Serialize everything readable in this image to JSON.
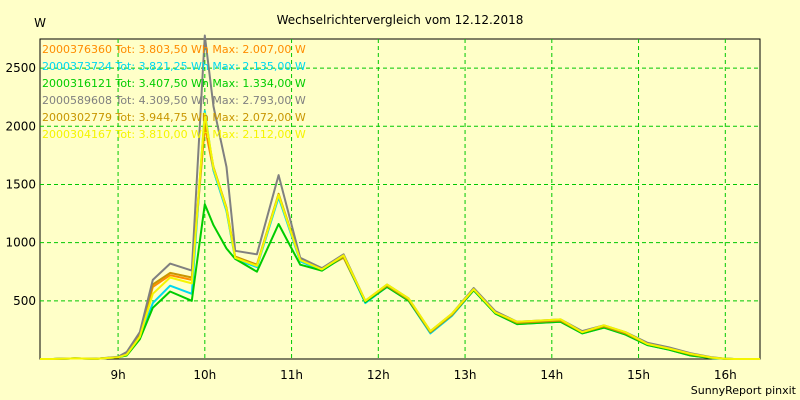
{
  "chart_data": {
    "type": "line",
    "title": "Wechselrichtervergleich vom 12.12.2018",
    "ylabel": "W",
    "footer": "SunnyReport pinxit",
    "xlim": [
      8.1,
      16.4
    ],
    "ylim": [
      0,
      2750
    ],
    "x_ticks": [
      {
        "value": 9,
        "label": "9h"
      },
      {
        "value": 10,
        "label": "10h"
      },
      {
        "value": 11,
        "label": "11h"
      },
      {
        "value": 12,
        "label": "12h"
      },
      {
        "value": 13,
        "label": "13h"
      },
      {
        "value": 14,
        "label": "14h"
      },
      {
        "value": 15,
        "label": "15h"
      },
      {
        "value": 16,
        "label": "16h"
      }
    ],
    "y_ticks": [
      500,
      1000,
      1500,
      2000,
      2500
    ],
    "grid": true,
    "x": [
      8.1,
      8.25,
      8.5,
      8.75,
      9.0,
      9.1,
      9.25,
      9.4,
      9.6,
      9.85,
      10.0,
      10.1,
      10.25,
      10.35,
      10.6,
      10.85,
      11.1,
      11.35,
      11.6,
      11.85,
      12.1,
      12.35,
      12.6,
      12.85,
      13.1,
      13.35,
      13.6,
      13.85,
      14.1,
      14.35,
      14.6,
      14.85,
      15.1,
      15.35,
      15.6,
      15.85,
      16.0,
      16.1,
      16.4
    ],
    "series": [
      {
        "name": "2000376360",
        "label": "2000376360 Tot: 3.803,50 Wh Max: 2.007,00 W",
        "color": "#ff8c00",
        "values": [
          0,
          0,
          5,
          3,
          15,
          40,
          200,
          620,
          720,
          680,
          2000,
          1620,
          1280,
          870,
          800,
          1400,
          850,
          770,
          870,
          490,
          630,
          510,
          230,
          380,
          600,
          400,
          310,
          320,
          330,
          230,
          280,
          220,
          130,
          90,
          40,
          10,
          2,
          0,
          0
        ]
      },
      {
        "name": "2000373724",
        "label": "2000373724 Tot: 3.821,25 Wh Max: 2.135,00 W",
        "color": "#00d8f0",
        "values": [
          0,
          0,
          5,
          3,
          15,
          35,
          180,
          480,
          630,
          560,
          2130,
          1620,
          1270,
          860,
          790,
          1390,
          840,
          760,
          880,
          480,
          620,
          500,
          220,
          370,
          590,
          390,
          300,
          310,
          320,
          220,
          270,
          210,
          120,
          80,
          30,
          8,
          2,
          0,
          0
        ]
      },
      {
        "name": "2000316121",
        "label": "2000316121 Tot: 3.407,50 Wh Max: 1.334,00 W",
        "color": "#00cc00",
        "values": [
          0,
          0,
          5,
          3,
          15,
          30,
          170,
          440,
          580,
          500,
          1330,
          1150,
          950,
          860,
          750,
          1160,
          810,
          760,
          880,
          490,
          620,
          500,
          230,
          380,
          590,
          390,
          300,
          310,
          320,
          220,
          270,
          210,
          120,
          80,
          30,
          8,
          2,
          0,
          0
        ]
      },
      {
        "name": "2000589608",
        "label": "2000589608 Tot: 4.309,50 Wh Max: 2.793,00 W",
        "color": "#808080",
        "values": [
          0,
          0,
          5,
          3,
          20,
          60,
          230,
          680,
          820,
          760,
          2780,
          2170,
          1650,
          930,
          900,
          1580,
          870,
          780,
          900,
          500,
          640,
          520,
          240,
          390,
          610,
          410,
          320,
          330,
          340,
          240,
          290,
          230,
          140,
          100,
          50,
          15,
          3,
          0,
          0
        ]
      },
      {
        "name": "2000302779",
        "label": "2000302779 Tot: 3.944,75 Wh Max: 2.072,00 W",
        "color": "#c89600",
        "values": [
          0,
          0,
          5,
          3,
          15,
          45,
          210,
          640,
          740,
          700,
          2060,
          1650,
          1300,
          880,
          810,
          1420,
          860,
          780,
          880,
          500,
          630,
          510,
          230,
          380,
          600,
          400,
          310,
          320,
          330,
          230,
          280,
          220,
          130,
          90,
          40,
          10,
          2,
          0,
          0
        ]
      },
      {
        "name": "2000304167",
        "label": "2000304167 Tot: 3.810,00 Wh Max: 2.112,00 W",
        "color": "#f5f500",
        "values": [
          0,
          0,
          5,
          3,
          15,
          38,
          190,
          560,
          700,
          650,
          2110,
          1640,
          1290,
          870,
          800,
          1410,
          850,
          770,
          890,
          500,
          640,
          520,
          240,
          390,
          600,
          400,
          320,
          330,
          340,
          230,
          290,
          230,
          130,
          90,
          45,
          12,
          2,
          0,
          0
        ]
      }
    ]
  }
}
